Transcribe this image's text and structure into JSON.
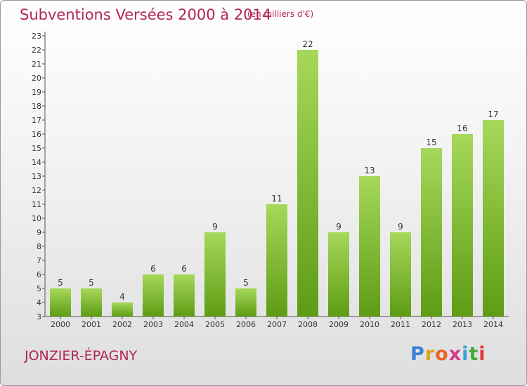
{
  "title": "Subventions Versées 2000 à 2014",
  "subtitle": "(en milliers d'€)",
  "commune": "JONZIER-ÉPAGNY",
  "logo": {
    "letters": [
      "P",
      "r",
      "o",
      "x",
      "i",
      "t",
      "i"
    ],
    "colors": [
      "#3b7fd6",
      "#e0a020",
      "#e9652a",
      "#d63a8a",
      "#3aa0d8",
      "#46a83c",
      "#e03a3a"
    ]
  },
  "chart_data": {
    "type": "bar",
    "categories": [
      "2000",
      "2001",
      "2002",
      "2003",
      "2004",
      "2005",
      "2006",
      "2007",
      "2008",
      "2009",
      "2010",
      "2011",
      "2012",
      "2013",
      "2014"
    ],
    "values": [
      5,
      5,
      4,
      6,
      6,
      9,
      5,
      11,
      22,
      9,
      13,
      9,
      15,
      16,
      17
    ],
    "ylim": [
      3,
      23
    ],
    "yticks": [
      3,
      4,
      5,
      6,
      7,
      8,
      9,
      10,
      11,
      12,
      13,
      14,
      15,
      16,
      17,
      18,
      19,
      20,
      21,
      22,
      23
    ],
    "bar_color_top": "#a6d85a",
    "bar_color_bottom": "#5e9c14",
    "grid": false
  }
}
